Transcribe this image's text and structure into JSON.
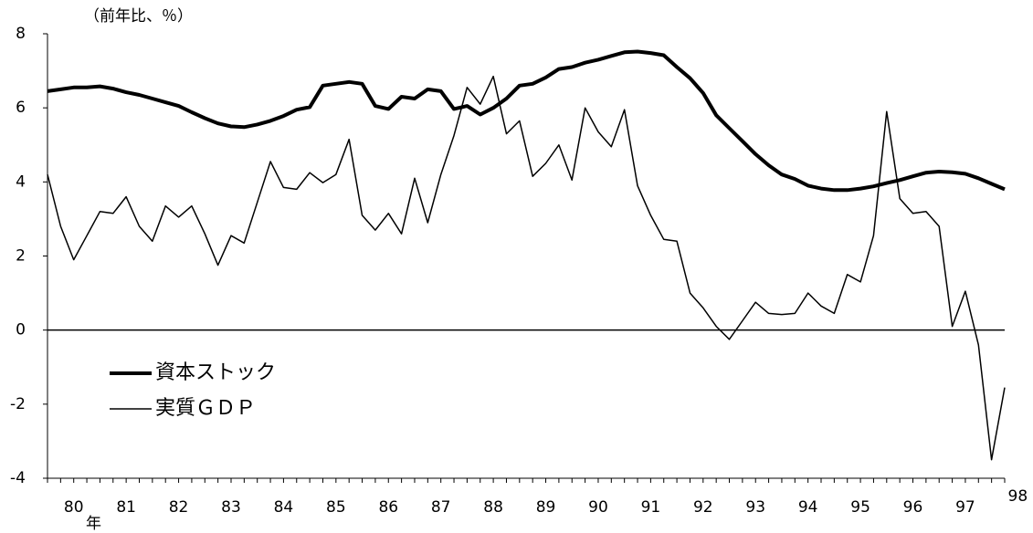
{
  "chart_data": {
    "type": "line",
    "annotations": [
      "（前年比、％）",
      "年"
    ],
    "x": [
      1980,
      1980.25,
      1980.5,
      1980.75,
      1981,
      1981.25,
      1981.5,
      1981.75,
      1982,
      1982.25,
      1982.5,
      1982.75,
      1983,
      1983.25,
      1983.5,
      1983.75,
      1984,
      1984.25,
      1984.5,
      1984.75,
      1985,
      1985.25,
      1985.5,
      1985.75,
      1986,
      1986.25,
      1986.5,
      1986.75,
      1987,
      1987.25,
      1987.5,
      1987.75,
      1988,
      1988.25,
      1988.5,
      1988.75,
      1989,
      1989.25,
      1989.5,
      1989.75,
      1990,
      1990.25,
      1990.5,
      1990.75,
      1991,
      1991.25,
      1991.5,
      1991.75,
      1992,
      1992.25,
      1992.5,
      1992.75,
      1993,
      1993.25,
      1993.5,
      1993.75,
      1994,
      1994.25,
      1994.5,
      1994.75,
      1995,
      1995.25,
      1995.5,
      1995.75,
      1996,
      1996.25,
      1996.5,
      1996.75,
      1997,
      1997.25,
      1997.5,
      1997.75,
      1998,
      1998.25
    ],
    "series": [
      {
        "name": "資本ストック",
        "color": "#000000",
        "width": 4,
        "values": [
          6.45,
          6.5,
          6.55,
          6.55,
          6.58,
          6.52,
          6.42,
          6.35,
          6.25,
          6.15,
          6.05,
          5.88,
          5.72,
          5.58,
          5.5,
          5.48,
          5.55,
          5.65,
          5.78,
          5.95,
          6.02,
          6.6,
          6.65,
          6.7,
          6.65,
          6.05,
          5.97,
          6.3,
          6.25,
          6.5,
          6.45,
          5.97,
          6.05,
          5.82,
          6.0,
          6.25,
          6.6,
          6.65,
          6.82,
          7.05,
          7.1,
          7.22,
          7.3,
          7.4,
          7.5,
          7.52,
          7.48,
          7.42,
          7.1,
          6.8,
          6.4,
          5.8,
          5.45,
          5.1,
          4.75,
          4.45,
          4.2,
          4.08,
          3.9,
          3.82,
          3.78,
          3.78,
          3.82,
          3.88,
          3.97,
          4.05,
          4.15,
          4.25,
          4.28,
          4.26,
          4.22,
          4.1,
          3.95,
          3.8
        ]
      },
      {
        "name": "実質ＧＤＰ",
        "color": "#000000",
        "width": 1.5,
        "values": [
          4.2,
          2.8,
          1.9,
          2.55,
          3.2,
          3.15,
          3.6,
          2.8,
          2.4,
          3.35,
          3.05,
          3.35,
          2.6,
          1.75,
          2.55,
          2.35,
          3.45,
          4.55,
          3.85,
          3.8,
          4.25,
          3.98,
          4.2,
          5.15,
          3.1,
          2.7,
          3.15,
          2.6,
          4.1,
          2.9,
          4.2,
          5.25,
          6.55,
          6.1,
          6.85,
          5.3,
          5.65,
          4.15,
          4.5,
          5.0,
          4.05,
          6.0,
          5.35,
          4.95,
          5.95,
          3.9,
          3.1,
          2.45,
          2.4,
          1.0,
          0.6,
          0.1,
          -0.25,
          0.25,
          0.75,
          0.45,
          0.42,
          0.45,
          1.0,
          0.65,
          0.45,
          1.5,
          1.3,
          2.55,
          5.9,
          3.55,
          3.15,
          3.2,
          2.8,
          0.1,
          1.05,
          -0.4,
          -3.5,
          -1.55
        ]
      }
    ],
    "xlim": [
      1980,
      1998.25
    ],
    "xticks": [
      {
        "value": 1980.5,
        "label": "80"
      },
      {
        "value": 1981.5,
        "label": "81"
      },
      {
        "value": 1982.5,
        "label": "82"
      },
      {
        "value": 1983.5,
        "label": "83"
      },
      {
        "value": 1984.5,
        "label": "84"
      },
      {
        "value": 1985.5,
        "label": "85"
      },
      {
        "value": 1986.5,
        "label": "86"
      },
      {
        "value": 1987.5,
        "label": "87"
      },
      {
        "value": 1988.5,
        "label": "88"
      },
      {
        "value": 1989.5,
        "label": "89"
      },
      {
        "value": 1990.5,
        "label": "90"
      },
      {
        "value": 1991.5,
        "label": "91"
      },
      {
        "value": 1992.5,
        "label": "92"
      },
      {
        "value": 1993.5,
        "label": "93"
      },
      {
        "value": 1994.5,
        "label": "94"
      },
      {
        "value": 1995.5,
        "label": "95"
      },
      {
        "value": 1996.5,
        "label": "96"
      },
      {
        "value": 1997.5,
        "label": "97"
      },
      {
        "value": 1998.5,
        "label": "98"
      }
    ],
    "ylim": [
      -4,
      8
    ],
    "yticks": [
      -4,
      -2,
      0,
      2,
      4,
      6,
      8
    ],
    "grid": false,
    "legend": "lower-left"
  }
}
